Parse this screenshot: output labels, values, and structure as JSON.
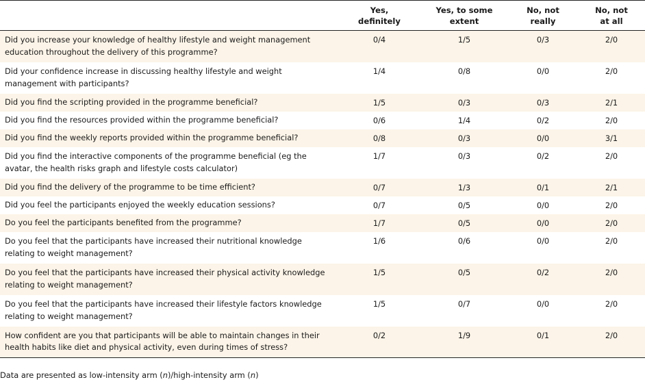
{
  "table": {
    "headers": [
      "",
      "Yes,\ndefinitely",
      "Yes, to some\nextent",
      "No, not\nreally",
      "No, not\nat all"
    ],
    "rows": [
      {
        "question": "Did you increase your knowledge of healthy lifestyle and weight management education throughout the delivery of this programme?",
        "yes_definitely": "0/4",
        "yes_some": "1/5",
        "no_not_really": "0/3",
        "no_not_at_all": "2/0"
      },
      {
        "question": "Did your confidence increase in discussing healthy lifestyle and weight management with participants?",
        "yes_definitely": "1/4",
        "yes_some": "0/8",
        "no_not_really": "0/0",
        "no_not_at_all": "2/0"
      },
      {
        "question": "Did you find the scripting provided in the programme beneficial?",
        "yes_definitely": "1/5",
        "yes_some": "0/3",
        "no_not_really": "0/3",
        "no_not_at_all": "2/1"
      },
      {
        "question": "Did you find the resources provided within the programme beneficial?",
        "yes_definitely": "0/6",
        "yes_some": "1/4",
        "no_not_really": "0/2",
        "no_not_at_all": "2/0"
      },
      {
        "question": "Did you find the weekly reports provided within the programme beneficial?",
        "yes_definitely": "0/8",
        "yes_some": "0/3",
        "no_not_really": "0/0",
        "no_not_at_all": "3/1"
      },
      {
        "question": "Did you find the interactive components of the programme beneficial (eg the avatar, the health risks graph and lifestyle costs calculator)",
        "yes_definitely": "1/7",
        "yes_some": "0/3",
        "no_not_really": "0/2",
        "no_not_at_all": "2/0"
      },
      {
        "question": "Did you find the delivery of the programme to be time efficient?",
        "yes_definitely": "0/7",
        "yes_some": "1/3",
        "no_not_really": "0/1",
        "no_not_at_all": "2/1"
      },
      {
        "question": "Did you feel the participants enjoyed the weekly education sessions?",
        "yes_definitely": "0/7",
        "yes_some": "0/5",
        "no_not_really": "0/0",
        "no_not_at_all": "2/0"
      },
      {
        "question": "Do you feel the participants benefited from the programme?",
        "yes_definitely": "1/7",
        "yes_some": "0/5",
        "no_not_really": "0/0",
        "no_not_at_all": "2/0"
      },
      {
        "question": "Do you feel that the participants have increased their nutritional knowledge relating to weight management?",
        "yes_definitely": "1/6",
        "yes_some": "0/6",
        "no_not_really": "0/0",
        "no_not_at_all": "2/0"
      },
      {
        "question": "Do you feel that the participants have increased their physical activity knowledge relating to weight management?",
        "yes_definitely": "1/5",
        "yes_some": "0/5",
        "no_not_really": "0/2",
        "no_not_at_all": "2/0"
      },
      {
        "question": "Do you feel that the participants have increased their lifestyle factors knowledge relating to weight management?",
        "yes_definitely": "1/5",
        "yes_some": "0/7",
        "no_not_really": "0/0",
        "no_not_at_all": "2/0"
      },
      {
        "question": "How confident are you that participants will be able to maintain changes in their health habits like diet and physical activity, even during times of stress?",
        "yes_definitely": "0/2",
        "yes_some": "1/9",
        "no_not_really": "0/1",
        "no_not_at_all": "2/0"
      }
    ]
  },
  "footnote": {
    "prefix": "Data are presented as low-intensity arm (",
    "n1": "n",
    "middle": ")/high-intensity arm (",
    "n2": "n",
    "suffix": ")"
  }
}
